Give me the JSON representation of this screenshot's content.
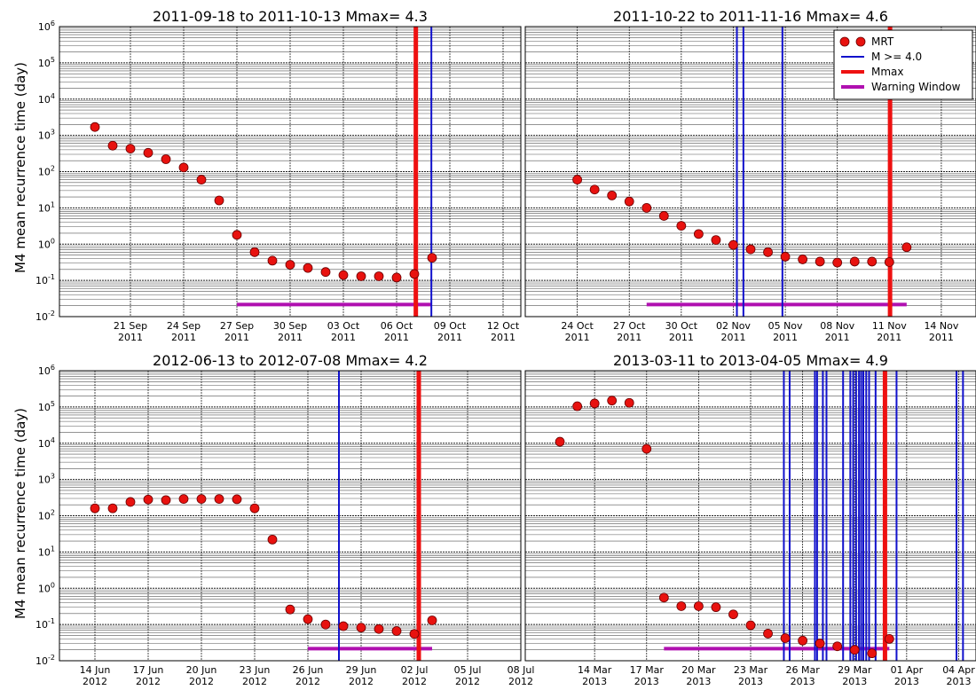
{
  "ylabel": "M4 mean recurrence time (day)",
  "legend": {
    "location": "upper right",
    "entries": [
      {
        "label": "MRT",
        "kind": "marker",
        "color": "#e8120f"
      },
      {
        "label": "M >= 4.0",
        "kind": "line",
        "color": "#1111cc"
      },
      {
        "label": "Mmax",
        "kind": "line",
        "color": "#ee1111"
      },
      {
        "label": "Warning Window",
        "kind": "line",
        "color": "#b010b0"
      }
    ]
  },
  "colors": {
    "mrt": "#e8120f",
    "events": "#1111cc",
    "mmax": "#ee1111",
    "warning": "#b010b0"
  },
  "chart_data": [
    {
      "type": "scatter",
      "title": "2011-09-18 to 2011-10-13  Mmax= 4.3",
      "yscale": "log",
      "ylim": [
        0.01,
        1000000
      ],
      "ytick_labels": [
        {
          "exp": -2,
          "label": "10-2"
        },
        {
          "exp": -1,
          "label": "10-1"
        },
        {
          "exp": 0,
          "label": "100"
        },
        {
          "exp": 1,
          "label": "101"
        },
        {
          "exp": 2,
          "label": "102"
        },
        {
          "exp": 3,
          "label": "103"
        },
        {
          "exp": 4,
          "label": "104"
        },
        {
          "exp": 5,
          "label": "105"
        },
        {
          "exp": 6,
          "label": "106"
        }
      ],
      "xlim": [
        "2011-09-17",
        "2011-10-13"
      ],
      "x_ticks": [
        {
          "date": "2011-09-21",
          "line1": "21 Sep",
          "line2": "2011"
        },
        {
          "date": "2011-09-24",
          "line1": "24 Sep",
          "line2": "2011"
        },
        {
          "date": "2011-09-27",
          "line1": "27 Sep",
          "line2": "2011"
        },
        {
          "date": "2011-09-30",
          "line1": "30 Sep",
          "line2": "2011"
        },
        {
          "date": "2011-10-03",
          "line1": "03 Oct",
          "line2": "2011"
        },
        {
          "date": "2011-10-06",
          "line1": "06 Oct",
          "line2": "2011"
        },
        {
          "date": "2011-10-09",
          "line1": "09 Oct",
          "line2": "2011"
        },
        {
          "date": "2011-10-12",
          "line1": "12 Oct",
          "line2": "2011"
        }
      ],
      "mrt": [
        {
          "x": "2011-09-19",
          "y": 1700
        },
        {
          "x": "2011-09-20",
          "y": 520
        },
        {
          "x": "2011-09-21",
          "y": 430
        },
        {
          "x": "2011-09-22",
          "y": 330
        },
        {
          "x": "2011-09-23",
          "y": 220
        },
        {
          "x": "2011-09-24",
          "y": 130
        },
        {
          "x": "2011-09-25",
          "y": 60
        },
        {
          "x": "2011-09-26",
          "y": 16
        },
        {
          "x": "2011-09-27",
          "y": 1.8
        },
        {
          "x": "2011-09-28",
          "y": 0.6
        },
        {
          "x": "2011-09-29",
          "y": 0.35
        },
        {
          "x": "2011-09-30",
          "y": 0.27
        },
        {
          "x": "2011-10-01",
          "y": 0.22
        },
        {
          "x": "2011-10-02",
          "y": 0.17
        },
        {
          "x": "2011-10-03",
          "y": 0.14
        },
        {
          "x": "2011-10-04",
          "y": 0.13
        },
        {
          "x": "2011-10-05",
          "y": 0.13
        },
        {
          "x": "2011-10-06",
          "y": 0.12
        },
        {
          "x": "2011-10-07",
          "y": 0.15
        },
        {
          "x": "2011-10-08",
          "y": 0.42
        }
      ],
      "events": [
        "2011-10-07T02:00",
        "2011-10-07T23:00"
      ],
      "mmax": "2011-10-07T02:00",
      "warning": {
        "start": "2011-09-27",
        "end": "2011-10-08"
      },
      "show_ylabel": true,
      "show_legend": false
    },
    {
      "type": "scatter",
      "title": "2011-10-22 to 2011-11-16  Mmax= 4.6",
      "yscale": "log",
      "ylim": [
        0.01,
        1000000
      ],
      "ytick_labels": [],
      "xlim": [
        "2011-10-21",
        "2011-11-16"
      ],
      "x_ticks": [
        {
          "date": "2011-10-24",
          "line1": "24 Oct",
          "line2": "2011"
        },
        {
          "date": "2011-10-27",
          "line1": "27 Oct",
          "line2": "2011"
        },
        {
          "date": "2011-10-30",
          "line1": "30 Oct",
          "line2": "2011"
        },
        {
          "date": "2011-11-02",
          "line1": "02 Nov",
          "line2": "2011"
        },
        {
          "date": "2011-11-05",
          "line1": "05 Nov",
          "line2": "2011"
        },
        {
          "date": "2011-11-08",
          "line1": "08 Nov",
          "line2": "2011"
        },
        {
          "date": "2011-11-11",
          "line1": "11 Nov",
          "line2": "2011"
        },
        {
          "date": "2011-11-14",
          "line1": "14 Nov",
          "line2": "2011"
        }
      ],
      "mrt": [
        {
          "x": "2011-10-24",
          "y": 60
        },
        {
          "x": "2011-10-25",
          "y": 32
        },
        {
          "x": "2011-10-26",
          "y": 22
        },
        {
          "x": "2011-10-27",
          "y": 15
        },
        {
          "x": "2011-10-28",
          "y": 10
        },
        {
          "x": "2011-10-29",
          "y": 6
        },
        {
          "x": "2011-10-30",
          "y": 3.2
        },
        {
          "x": "2011-10-31",
          "y": 1.9
        },
        {
          "x": "2011-11-01",
          "y": 1.3
        },
        {
          "x": "2011-11-02",
          "y": 0.95
        },
        {
          "x": "2011-11-03",
          "y": 0.72
        },
        {
          "x": "2011-11-04",
          "y": 0.6
        },
        {
          "x": "2011-11-05",
          "y": 0.45
        },
        {
          "x": "2011-11-06",
          "y": 0.38
        },
        {
          "x": "2011-11-07",
          "y": 0.33
        },
        {
          "x": "2011-11-08",
          "y": 0.31
        },
        {
          "x": "2011-11-09",
          "y": 0.33
        },
        {
          "x": "2011-11-10",
          "y": 0.33
        },
        {
          "x": "2011-11-11",
          "y": 0.32
        },
        {
          "x": "2011-11-12",
          "y": 0.82
        }
      ],
      "events": [
        "2011-11-02T05:00",
        "2011-11-02T14:00",
        "2011-11-04T20:00",
        "2011-11-11T01:00"
      ],
      "mmax": "2011-11-11T01:00",
      "warning": {
        "start": "2011-10-28",
        "end": "2011-11-12"
      },
      "show_ylabel": false,
      "show_legend": true
    },
    {
      "type": "scatter",
      "title": "2012-06-13 to 2012-07-08  Mmax= 4.2",
      "yscale": "log",
      "ylim": [
        0.01,
        1000000
      ],
      "ytick_labels": [
        {
          "exp": -2,
          "label": "10-2"
        },
        {
          "exp": -1,
          "label": "10-1"
        },
        {
          "exp": 0,
          "label": "100"
        },
        {
          "exp": 1,
          "label": "101"
        },
        {
          "exp": 2,
          "label": "102"
        },
        {
          "exp": 3,
          "label": "103"
        },
        {
          "exp": 4,
          "label": "104"
        },
        {
          "exp": 5,
          "label": "105"
        },
        {
          "exp": 6,
          "label": "106"
        }
      ],
      "xlim": [
        "2012-06-12",
        "2012-07-08"
      ],
      "x_ticks": [
        {
          "date": "2012-06-14",
          "line1": "14 Jun",
          "line2": "2012"
        },
        {
          "date": "2012-06-17",
          "line1": "17 Jun",
          "line2": "2012"
        },
        {
          "date": "2012-06-20",
          "line1": "20 Jun",
          "line2": "2012"
        },
        {
          "date": "2012-06-23",
          "line1": "23 Jun",
          "line2": "2012"
        },
        {
          "date": "2012-06-26",
          "line1": "26 Jun",
          "line2": "2012"
        },
        {
          "date": "2012-06-29",
          "line1": "29 Jun",
          "line2": "2012"
        },
        {
          "date": "2012-07-02",
          "line1": "02 Jul",
          "line2": "2012"
        },
        {
          "date": "2012-07-05",
          "line1": "05 Jul",
          "line2": "2012"
        },
        {
          "date": "2012-07-08",
          "line1": "08 Jul",
          "line2": "2012"
        }
      ],
      "mrt": [
        {
          "x": "2012-06-14",
          "y": 160
        },
        {
          "x": "2012-06-15",
          "y": 160
        },
        {
          "x": "2012-06-16",
          "y": 240
        },
        {
          "x": "2012-06-17",
          "y": 280
        },
        {
          "x": "2012-06-18",
          "y": 270
        },
        {
          "x": "2012-06-19",
          "y": 290
        },
        {
          "x": "2012-06-20",
          "y": 290
        },
        {
          "x": "2012-06-21",
          "y": 290
        },
        {
          "x": "2012-06-22",
          "y": 285
        },
        {
          "x": "2012-06-23",
          "y": 160
        },
        {
          "x": "2012-06-24",
          "y": 22
        },
        {
          "x": "2012-06-25",
          "y": 0.26
        },
        {
          "x": "2012-06-26",
          "y": 0.14
        },
        {
          "x": "2012-06-27",
          "y": 0.1
        },
        {
          "x": "2012-06-28",
          "y": 0.09
        },
        {
          "x": "2012-06-29",
          "y": 0.082
        },
        {
          "x": "2012-06-30",
          "y": 0.075
        },
        {
          "x": "2012-07-01",
          "y": 0.066
        },
        {
          "x": "2012-07-02",
          "y": 0.055
        },
        {
          "x": "2012-07-03",
          "y": 0.13
        }
      ],
      "events": [
        "2012-06-27T18:00",
        "2012-07-02T06:00"
      ],
      "mmax": "2012-07-02T06:00",
      "warning": {
        "start": "2012-06-26",
        "end": "2012-07-03"
      },
      "show_ylabel": true,
      "show_legend": false
    },
    {
      "type": "scatter",
      "title": "2013-03-11 to 2013-04-05  Mmax= 4.9",
      "yscale": "log",
      "ylim": [
        0.01,
        1000000
      ],
      "ytick_labels": [],
      "xlim": [
        "2013-03-10",
        "2013-04-05"
      ],
      "x_ticks": [
        {
          "date": "2013-03-14",
          "line1": "14 Mar",
          "line2": "2013"
        },
        {
          "date": "2013-03-17",
          "line1": "17 Mar",
          "line2": "2013"
        },
        {
          "date": "2013-03-20",
          "line1": "20 Mar",
          "line2": "2013"
        },
        {
          "date": "2013-03-23",
          "line1": "23 Mar",
          "line2": "2013"
        },
        {
          "date": "2013-03-26",
          "line1": "26 Mar",
          "line2": "2013"
        },
        {
          "date": "2013-03-29",
          "line1": "29 Mar",
          "line2": "2013"
        },
        {
          "date": "2013-04-01",
          "line1": "01 Apr",
          "line2": "2013"
        },
        {
          "date": "2013-04-04",
          "line1": "04 Apr",
          "line2": "2013"
        }
      ],
      "mrt": [
        {
          "x": "2013-03-12",
          "y": 11000
        },
        {
          "x": "2013-03-13",
          "y": 105000
        },
        {
          "x": "2013-03-14",
          "y": 125000
        },
        {
          "x": "2013-03-15",
          "y": 150000
        },
        {
          "x": "2013-03-16",
          "y": 130000
        },
        {
          "x": "2013-03-17",
          "y": 7000
        },
        {
          "x": "2013-03-18",
          "y": 0.55
        },
        {
          "x": "2013-03-19",
          "y": 0.32
        },
        {
          "x": "2013-03-20",
          "y": 0.32
        },
        {
          "x": "2013-03-21",
          "y": 0.3
        },
        {
          "x": "2013-03-22",
          "y": 0.19
        },
        {
          "x": "2013-03-23",
          "y": 0.095
        },
        {
          "x": "2013-03-24",
          "y": 0.056
        },
        {
          "x": "2013-03-25",
          "y": 0.042
        },
        {
          "x": "2013-03-26",
          "y": 0.036
        },
        {
          "x": "2013-03-27",
          "y": 0.03
        },
        {
          "x": "2013-03-28",
          "y": 0.025
        },
        {
          "x": "2013-03-29",
          "y": 0.02
        },
        {
          "x": "2013-03-30",
          "y": 0.016
        },
        {
          "x": "2013-03-31",
          "y": 0.04
        }
      ],
      "events": [
        "2013-03-24T22:00",
        "2013-03-25T06:00",
        "2013-03-26T17:00",
        "2013-03-26T20:00",
        "2013-03-27T04:00",
        "2013-03-27T09:00",
        "2013-03-28T08:00",
        "2013-03-28T18:00",
        "2013-03-28T22:00",
        "2013-03-29T02:00",
        "2013-03-29T06:00",
        "2013-03-29T09:00",
        "2013-03-29T12:00",
        "2013-03-29T16:00",
        "2013-03-29T20:00",
        "2013-03-30T05:00",
        "2013-03-31T10:00",
        "2013-04-03T21:00",
        "2013-04-04T06:00"
      ],
      "mmax": "2013-03-30T18:00",
      "warning": {
        "start": "2013-03-18",
        "end": "2013-03-31"
      },
      "show_ylabel": false,
      "show_legend": false
    }
  ]
}
